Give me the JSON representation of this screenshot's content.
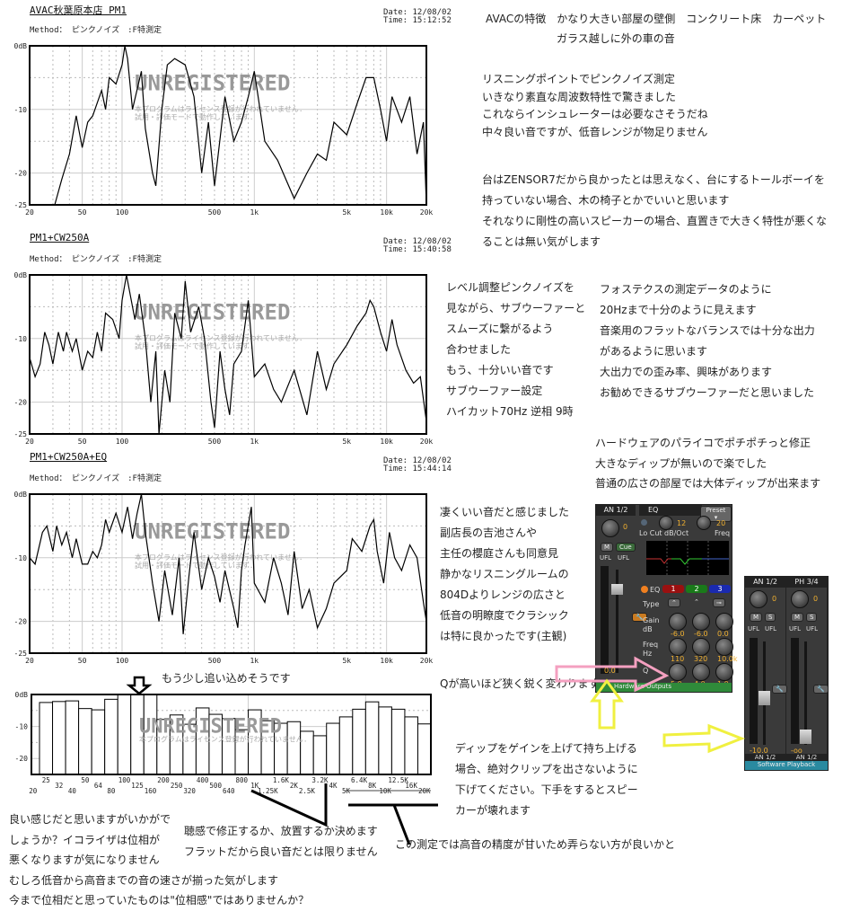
{
  "charts": [
    {
      "title": "AVAC秋葉原本店 PM1",
      "method": "Method： ピンクノイズ　:F特測定",
      "date": "Date: 12/08/02",
      "time": "Time: 15:12:52",
      "watermark": "UNREGISTERED",
      "watermark_sub1": "本プログラムはライセンス登録が行われていません.",
      "watermark_sub2": "試用・評価モードで動作しています.",
      "chart_data": {
        "type": "line",
        "xscale": "log",
        "xlim": [
          20,
          20000
        ],
        "ylim": [
          -25,
          0
        ],
        "grid": true,
        "yticks": [
          "0dB",
          "-10",
          "-20",
          "-25"
        ],
        "xticks": [
          "20",
          "50",
          "100",
          "500",
          "1k",
          "5k",
          "10k",
          "20k"
        ],
        "x": [
          31,
          35,
          40,
          45,
          50,
          55,
          60,
          70,
          75,
          80,
          90,
          100,
          105,
          110,
          120,
          140,
          150,
          170,
          180,
          200,
          220,
          250,
          300,
          350,
          400,
          450,
          500,
          600,
          700,
          800,
          900,
          1000,
          1200,
          1500,
          2000,
          2500,
          3000,
          3500,
          4000,
          5000,
          6000,
          7000,
          8000,
          9000,
          10000,
          11000,
          13000,
          15000,
          17000,
          19000,
          20000
        ],
        "y": [
          -25,
          -21,
          -17,
          -11,
          -16,
          -12,
          -11,
          -7,
          -10,
          -5,
          -6,
          -3,
          0,
          -2,
          -10,
          -4,
          -13,
          -20,
          -22,
          -10,
          -3,
          -2,
          -3,
          -8,
          -20,
          -12,
          -22,
          -8,
          -15,
          -12,
          -8,
          -4,
          -15,
          -18,
          -24,
          -20,
          -17,
          -18,
          -12,
          -14,
          -9,
          -5,
          -5,
          -10,
          -15,
          -8,
          -12,
          -8,
          -17,
          -12,
          -25
        ]
      }
    },
    {
      "title": "PM1+CW250A",
      "method": "Method： ピンクノイズ　:F特測定",
      "date": "Date: 12/08/02",
      "time": "Time: 15:40:58",
      "watermark": "UNREGISTERED",
      "watermark_sub1": "本プログラムはライセンス登録が行われていません.",
      "watermark_sub2": "試用・評価モードで動作しています.",
      "chart_data": {
        "type": "line",
        "xscale": "log",
        "xlim": [
          20,
          20000
        ],
        "ylim": [
          -25,
          0
        ],
        "grid": true,
        "yticks": [
          "0dB",
          "-10",
          "-20",
          "-25"
        ],
        "xticks": [
          "20",
          "50",
          "100",
          "500",
          "1k",
          "5k",
          "10k",
          "20k"
        ],
        "x": [
          20,
          22,
          24,
          26,
          28,
          30,
          33,
          36,
          38,
          42,
          45,
          50,
          55,
          60,
          65,
          70,
          75,
          85,
          95,
          100,
          108,
          115,
          125,
          135,
          150,
          165,
          180,
          190,
          210,
          230,
          250,
          280,
          300,
          330,
          380,
          420,
          470,
          500,
          550,
          600,
          650,
          700,
          800,
          900,
          1000,
          1200,
          1400,
          1600,
          2000,
          2500,
          3000,
          3500,
          4000,
          5000,
          6000,
          7000,
          7500,
          8000,
          9000,
          10000,
          11000,
          12000,
          14000,
          16000,
          18000,
          20000
        ],
        "y": [
          -13,
          -16,
          -14,
          -9,
          -11,
          -14,
          -9,
          -12,
          -9,
          -12,
          -10,
          -15,
          -12,
          -13,
          -9,
          -12,
          -6,
          -7,
          -10,
          -4,
          0,
          -3,
          -7,
          -3,
          -10,
          -20,
          -12,
          -25,
          -15,
          -20,
          -6,
          -10,
          -1,
          -9,
          -5,
          -10,
          -20,
          -24,
          -12,
          -18,
          -22,
          -14,
          -12,
          -4,
          -16,
          -14,
          -18,
          -20,
          -15,
          -22,
          -12,
          -18,
          -14,
          -11,
          -8,
          -6,
          -4,
          -5,
          -9,
          -12,
          -7,
          -11,
          -15,
          -17,
          -16,
          -23
        ]
      }
    },
    {
      "title": "PM1+CW250A+EQ",
      "method": "Method： ピンクノイズ　:F特測定",
      "date": "Date: 12/08/02",
      "time": "Time: 15:44:14",
      "watermark": "UNREGISTERED",
      "watermark_sub1": "本プログラムはライセンス登録が行われていません.",
      "watermark_sub2": "試用・評価モードで動作しています.",
      "chart_data": {
        "type": "line",
        "xscale": "log",
        "xlim": [
          20,
          20000
        ],
        "ylim": [
          -25,
          0
        ],
        "grid": true,
        "yticks": [
          "0dB",
          "-10",
          "-20",
          "-25"
        ],
        "xticks": [
          "20",
          "50",
          "100",
          "500",
          "1k",
          "5k",
          "10k",
          "20k"
        ],
        "x": [
          20,
          22,
          25,
          27,
          30,
          32,
          35,
          38,
          42,
          45,
          50,
          55,
          60,
          65,
          70,
          75,
          80,
          90,
          100,
          110,
          120,
          130,
          140,
          150,
          170,
          190,
          210,
          240,
          270,
          290,
          320,
          350,
          400,
          450,
          500,
          550,
          600,
          700,
          750,
          800,
          850,
          950,
          1000,
          1200,
          1400,
          1600,
          1800,
          2000,
          2300,
          2600,
          3000,
          3500,
          4000,
          5000,
          5500,
          6500,
          7500,
          8000,
          8500,
          9500,
          10500,
          11500,
          13000,
          15000,
          17000,
          19000,
          20000
        ],
        "y": [
          -10,
          -11,
          -6,
          -5,
          -9,
          -5,
          -8,
          -6,
          -10,
          -7,
          -11,
          -11,
          -9,
          -10,
          -8,
          -4,
          -6,
          -3,
          -6,
          -2,
          -7,
          -3,
          0,
          -6,
          -14,
          -20,
          -12,
          -19,
          -10,
          -22,
          -13,
          -6,
          -15,
          -10,
          -13,
          -17,
          -12,
          -18,
          -21,
          -12,
          -8,
          -2,
          -14,
          -17,
          -10,
          -14,
          -19,
          -9,
          -18,
          -15,
          -21,
          -18,
          -14,
          -12,
          -7,
          -9,
          -5,
          -4,
          -9,
          -14,
          -6,
          -10,
          -12,
          -8,
          -10,
          -17,
          -20
        ]
      }
    }
  ],
  "band_chart": {
    "watermark": "UNREGISTERED",
    "watermark_sub1": "本プログラムはライセンス登録が行われていません.",
    "annotation": "もう少し追い込めそうです",
    "chart_data": {
      "type": "bar",
      "ylim": [
        -25,
        0
      ],
      "grid": true,
      "yticks": [
        "0dB",
        "-10",
        "-20"
      ],
      "tick_labels": [
        "20",
        "25",
        "32",
        "40",
        "50",
        "64",
        "80",
        "100",
        "125",
        "160",
        "200",
        "250",
        "320",
        "400",
        "500",
        "640",
        "800",
        "1K",
        "1.25K",
        "1.6K",
        "2K",
        "2.5K",
        "3.2K",
        "4K",
        "5K",
        "6.4K",
        "8K",
        "10K",
        "12.5K",
        "16K",
        "20K"
      ],
      "categories": [
        "25",
        "32",
        "40",
        "50",
        "64",
        "80",
        "100",
        "125",
        "160",
        "200",
        "250",
        "320",
        "400",
        "500",
        "640",
        "800",
        "1K",
        "1.25K",
        "1.6K",
        "2K",
        "2.5K",
        "3.2K",
        "4K",
        "5K",
        "6.4K",
        "8K",
        "10K",
        "12.5K",
        "16K",
        "20K"
      ],
      "values": [
        -2.5,
        -2.2,
        -2,
        -4.4,
        -4.8,
        -1.5,
        0,
        0,
        0,
        -7.8,
        -6.4,
        -9.3,
        -4.2,
        -6.2,
        -7.5,
        -11,
        -4.8,
        -8.2,
        -9,
        -8.5,
        -11.5,
        -12.9,
        -9,
        -7,
        -4.6,
        -2.3,
        -3.9,
        -4.6,
        -7,
        -9.2
      ]
    }
  },
  "texts": {
    "intro": [
      "AVACの特徴　かなり大きい部屋の壁側　コンクリート床　カーペット",
      "ガラス越しに外の車の音"
    ],
    "block1": [
      "リスニングポイントでピンクノイズ測定",
      "いきなり素直な周波数特性で驚きました",
      "これならインシュレーターは必要なさそうだね",
      "中々良い音ですが、低音レンジが物足りません"
    ],
    "block2": [
      "台はZENSOR7だから良かったとは思えなく、台にするトールボーイを",
      "持っていない場合、木の椅子とかでいいと思います",
      "それなりに剛性の高いスピーカーの場合、直置きで大きく特性が悪くな",
      "ることは無い気がします"
    ],
    "block3": [
      "レベル調整ピンクノイズを",
      "見ながら、サブウーファーと",
      "スムーズに繋がるよう",
      "合わせました",
      "もう、十分いい音です",
      "サブウーファー設定",
      "ハイカット70Hz 逆相 9時"
    ],
    "block4": [
      "フォステクスの測定データのように",
      "20Hzまで十分のように見えます",
      "音楽用のフラットなバランスでは十分な出力",
      "があるように思います",
      "大出力での歪み率、興味があります",
      "お勧めできるサブウーファーだと思いました"
    ],
    "block5": [
      "ハードウェアのパライコでポチポチっと修正",
      "大きなディップが無いので楽でした",
      "普通の広さの部屋では大体ディップが出来ます"
    ],
    "block6": [
      "凄くいい音だと感じました",
      "副店長の吉池さんや",
      "主任の櫻庭さんも同意見",
      "静かなリスニングルームの",
      "804Dよりレンジの広さと",
      "低音の明瞭度でクラシック",
      "は特に良かったです(主観)"
    ],
    "q_note": "Qが高いほど狭く鋭く変わります",
    "block7": [
      "ディップをゲインを上げて持ち上げる",
      "場合、絶対クリップを出さないように",
      "下げてください。下手をするとスピー",
      "カーが壊れます"
    ],
    "block8": [
      "良い感じだと思いますがいかがで",
      "しょうか？イコライザは位相が",
      "悪くなりますが気になりません",
      "むしろ低音から高音までの音の速さが揃った気がします",
      "今まで位相だと思っていたものは\"位相感\"ではありませんか？"
    ],
    "block9": [
      "聴感で修正するか、放置するか決めます",
      "フラットだから良い音だとは限りません"
    ],
    "block10": "この測定では高音の精度が甘いため弄らない方が良いかと"
  },
  "mixer_eq": {
    "channel": "AN 1/2",
    "tab": "EQ",
    "preset": "Preset ▾",
    "pan_value": "0",
    "mute": "M",
    "cue": "Cue",
    "ufl1": "UFL",
    "ufl2": "UFL",
    "locut_label": "Lo Cut",
    "slope_value": "12",
    "slope_label": "dB/Oct",
    "freq_value": "20",
    "freq_label": "Freq",
    "eq_label": "EQ",
    "bands": [
      "1",
      "2",
      "3"
    ],
    "type_label": "Type",
    "gain_label": "Gain",
    "gain_unit": "dB",
    "gains": [
      "-6.0",
      "-6.0",
      "0.0"
    ],
    "freq_row_label": "Freq",
    "freq_unit": "Hz",
    "freqs": [
      "110",
      "320",
      "10.0k"
    ],
    "q_label": "Q",
    "qs": [
      "5.0",
      "4.0",
      "1.0"
    ],
    "fader_value": "0.0",
    "footer": "Hardware Outputs",
    "colors": {
      "band1": "#9a1010",
      "band2": "#1a7a1a",
      "band3": "#1a2ab0",
      "value": "#f0b030"
    }
  },
  "mixer_playback": {
    "channels": [
      {
        "name": "AN 1/2",
        "pan": "0",
        "m": "M",
        "s": "S",
        "ufl": "UFL",
        "fader_value": "-10.0",
        "bottom": "AN 1/2",
        "fader_level": 0.55
      },
      {
        "name": "PH 3/4",
        "pan": "0",
        "m": "M",
        "s": "S",
        "ufl": "UFL",
        "fader_value": "-oo",
        "bottom": "AN 1/2",
        "fader_level": 0.1
      }
    ],
    "footer": "Software Playback"
  }
}
